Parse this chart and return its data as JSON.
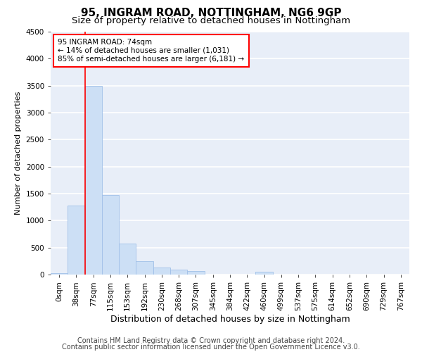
{
  "title1": "95, INGRAM ROAD, NOTTINGHAM, NG6 9GP",
  "title2": "Size of property relative to detached houses in Nottingham",
  "xlabel": "Distribution of detached houses by size in Nottingham",
  "ylabel": "Number of detached properties",
  "footer1": "Contains HM Land Registry data © Crown copyright and database right 2024.",
  "footer2": "Contains public sector information licensed under the Open Government Licence v3.0.",
  "categories": [
    "0sqm",
    "38sqm",
    "77sqm",
    "115sqm",
    "153sqm",
    "192sqm",
    "230sqm",
    "268sqm",
    "307sqm",
    "345sqm",
    "384sqm",
    "422sqm",
    "460sqm",
    "499sqm",
    "537sqm",
    "575sqm",
    "614sqm",
    "652sqm",
    "690sqm",
    "729sqm",
    "767sqm"
  ],
  "values": [
    30,
    1280,
    3500,
    1470,
    575,
    245,
    135,
    85,
    65,
    0,
    0,
    0,
    50,
    0,
    0,
    0,
    0,
    0,
    0,
    0,
    0
  ],
  "bar_color": "#ccdff5",
  "bar_edge_color": "#a0c0e8",
  "red_line_x": 1.5,
  "annotation_text": "95 INGRAM ROAD: 74sqm\n← 14% of detached houses are smaller (1,031)\n85% of semi-detached houses are larger (6,181) →",
  "annotation_box_color": "white",
  "annotation_box_edge": "red",
  "ylim": [
    0,
    4500
  ],
  "yticks": [
    0,
    500,
    1000,
    1500,
    2000,
    2500,
    3000,
    3500,
    4000,
    4500
  ],
  "background_color": "#e8eef8",
  "grid_color": "white",
  "title1_fontsize": 11,
  "title2_fontsize": 9.5,
  "xlabel_fontsize": 9,
  "ylabel_fontsize": 8,
  "tick_fontsize": 7.5,
  "footer_fontsize": 7
}
